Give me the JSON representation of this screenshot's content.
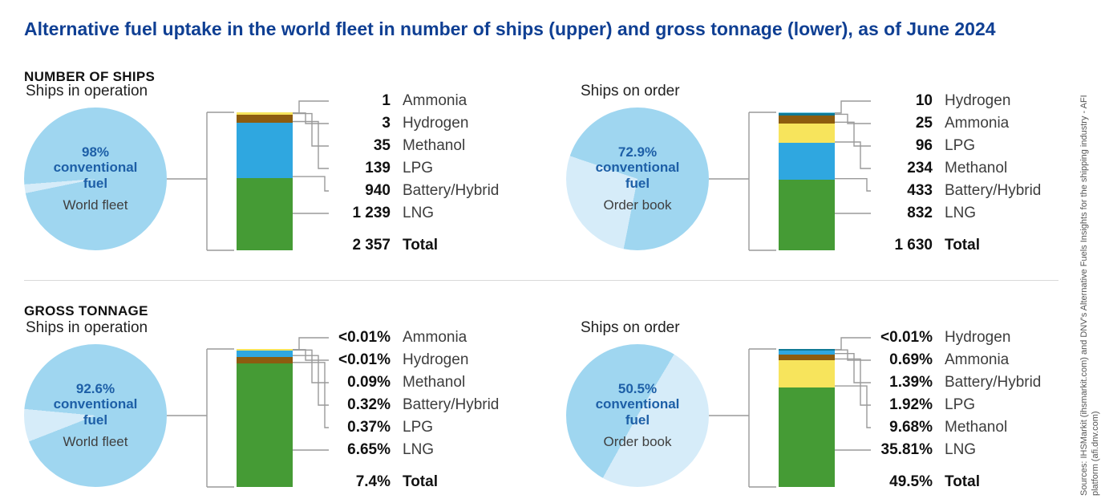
{
  "title": "Alternative fuel uptake in the world fleet in number of ships (upper) and gross tonnage (lower), as of June 2024",
  "section_headings": [
    "NUMBER OF SHIPS",
    "GROSS TONNAGE"
  ],
  "labels": {
    "total": "Total"
  },
  "source_note": "Sources: IHSMarkit (ihsmarkit.com) and DNV's Alternative Fuels Insights for the shipping industry - AFI platform (afi.dnv.com)",
  "colors": {
    "title_blue": "#0f3f93",
    "accent_blue": "#1d5fa7",
    "pie_conventional": "#9fd6f0",
    "pie_alternative": "#d6ecf9",
    "LNG": "#459b35",
    "Battery/Hybrid": "#2fa7e0",
    "LPG": "#8d5c0f",
    "Methanol": "#f7e45c",
    "Ammonia": "#0f7a96",
    "Hydrogen": "#79cde8"
  },
  "chart_data": [
    {
      "type": "composite",
      "section": "NUMBER OF SHIPS",
      "panel": "Ships in operation",
      "pie": {
        "type": "pie",
        "unit": "%",
        "labels": [
          "conventional fuel",
          "alternative fuel"
        ],
        "values": [
          98,
          2
        ],
        "percent_label": "98%",
        "conventional_label": "conventional fuel",
        "sub_label": "World fleet"
      },
      "bar": {
        "type": "bar",
        "stacked": true,
        "unit": "ships",
        "categories": [
          "Ammonia",
          "Hydrogen",
          "Methanol",
          "LPG",
          "Battery/Hybrid",
          "LNG"
        ],
        "values": [
          1,
          3,
          35,
          139,
          940,
          1239
        ],
        "value_labels": [
          "1",
          "3",
          "35",
          "139",
          "940",
          "1 239"
        ],
        "total": 2357,
        "total_label": "2 357"
      }
    },
    {
      "type": "composite",
      "section": "NUMBER OF SHIPS",
      "panel": "Ships on order",
      "pie": {
        "type": "pie",
        "unit": "%",
        "labels": [
          "conventional fuel",
          "alternative fuel"
        ],
        "values": [
          72.9,
          27.1
        ],
        "percent_label": "72.9%",
        "conventional_label": "conventional fuel",
        "sub_label": "Order book"
      },
      "bar": {
        "type": "bar",
        "stacked": true,
        "unit": "ships",
        "categories": [
          "Hydrogen",
          "Ammonia",
          "LPG",
          "Methanol",
          "Battery/Hybrid",
          "LNG"
        ],
        "values": [
          10,
          25,
          96,
          234,
          433,
          832
        ],
        "value_labels": [
          "10",
          "25",
          "96",
          "234",
          "433",
          "832"
        ],
        "total": 1630,
        "total_label": "1 630"
      }
    },
    {
      "type": "composite",
      "section": "GROSS TONNAGE",
      "panel": "Ships in operation",
      "pie": {
        "type": "pie",
        "unit": "%",
        "labels": [
          "conventional fuel",
          "alternative fuel"
        ],
        "values": [
          92.6,
          7.4
        ],
        "percent_label": "92.6%",
        "conventional_label": "conventional fuel",
        "sub_label": "World fleet"
      },
      "bar": {
        "type": "bar",
        "stacked": true,
        "unit": "% of gross tonnage",
        "categories": [
          "Ammonia",
          "Hydrogen",
          "Methanol",
          "Battery/Hybrid",
          "LPG",
          "LNG"
        ],
        "values": [
          0.005,
          0.005,
          0.09,
          0.32,
          0.37,
          6.65
        ],
        "value_labels": [
          "<0.01%",
          "<0.01%",
          "0.09%",
          "0.32%",
          "0.37%",
          "6.65%"
        ],
        "total": 7.4,
        "total_label": "7.4%"
      }
    },
    {
      "type": "composite",
      "section": "GROSS TONNAGE",
      "panel": "Ships on order",
      "pie": {
        "type": "pie",
        "unit": "%",
        "labels": [
          "conventional fuel",
          "alternative fuel"
        ],
        "values": [
          50.5,
          49.5
        ],
        "percent_label": "50.5%",
        "conventional_label": "conventional fuel",
        "sub_label": "Order book"
      },
      "bar": {
        "type": "bar",
        "stacked": true,
        "unit": "% of gross tonnage",
        "categories": [
          "Hydrogen",
          "Ammonia",
          "Battery/Hybrid",
          "LPG",
          "Methanol",
          "LNG"
        ],
        "values": [
          0.005,
          0.69,
          1.39,
          1.92,
          9.68,
          35.81
        ],
        "value_labels": [
          "<0.01%",
          "0.69%",
          "1.39%",
          "1.92%",
          "9.68%",
          "35.81%"
        ],
        "total": 49.5,
        "total_label": "49.5%"
      }
    }
  ]
}
